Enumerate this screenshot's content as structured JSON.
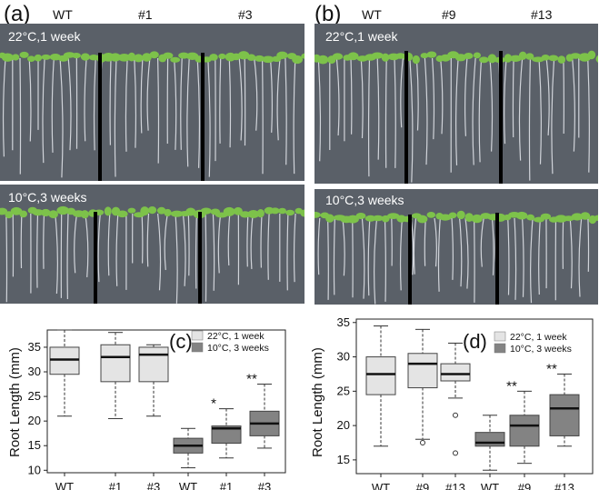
{
  "figure": {
    "panel_a": {
      "label": "(a)",
      "genotypes": [
        "WT",
        "#1",
        "#3"
      ],
      "condition_top": "22°C,1 week",
      "condition_bottom": "10°C,3 weeks"
    },
    "panel_b": {
      "label": "(b)",
      "genotypes": [
        "WT",
        "#9",
        "#13"
      ],
      "condition_top": "22°C,1 week",
      "condition_bottom": "10°C,3 weeks"
    }
  },
  "colors": {
    "light_box": "#e4e4e4",
    "dark_box": "#838383",
    "photo_bg": "#5b6169",
    "leaf": "#7dc24a",
    "root": "#e6e9ee"
  },
  "chart_data": [
    {
      "type": "boxplot",
      "panel": "(c)",
      "ylabel": "Root Length (mm)",
      "ylim": [
        9.5,
        38.5
      ],
      "yticks": [
        10,
        15,
        20,
        25,
        30,
        35
      ],
      "categories": [
        "WT",
        "#1",
        "#3",
        "WT",
        "#1",
        "#3"
      ],
      "legend": [
        "22°C, 1 week",
        "10°C, 3 weeks"
      ],
      "boxes": [
        {
          "label": "WT",
          "group": 0,
          "min": 21,
          "q1": 29.5,
          "median": 32.5,
          "q3": 35,
          "max": 38.5,
          "sig": ""
        },
        {
          "label": "#1",
          "group": 0,
          "min": 20.5,
          "q1": 28,
          "median": 33,
          "q3": 35.5,
          "max": 38,
          "sig": ""
        },
        {
          "label": "#3",
          "group": 0,
          "min": 21,
          "q1": 28,
          "median": 33.5,
          "q3": 35,
          "max": 35.5,
          "sig": ""
        },
        {
          "label": "WT",
          "group": 1,
          "min": 10.5,
          "q1": 13.5,
          "median": 15,
          "q3": 16.5,
          "max": 18.5,
          "sig": ""
        },
        {
          "label": "#1",
          "group": 1,
          "min": 12.5,
          "q1": 15.5,
          "median": 18.5,
          "q3": 19,
          "max": 22.5,
          "sig": "*"
        },
        {
          "label": "#3",
          "group": 1,
          "min": 14.5,
          "q1": 17,
          "median": 19.5,
          "q3": 22,
          "max": 27.5,
          "sig": "**"
        }
      ]
    },
    {
      "type": "boxplot",
      "panel": "(d)",
      "ylabel": "Root Length (mm)",
      "ylim": [
        13,
        35.5
      ],
      "yticks": [
        15,
        20,
        25,
        30,
        35
      ],
      "categories": [
        "WT",
        "#9",
        "#13",
        "WT",
        "#9",
        "#13"
      ],
      "legend": [
        "22°C, 1 week",
        "10°C, 3 weeks"
      ],
      "boxes": [
        {
          "label": "WT",
          "group": 0,
          "min": 17,
          "q1": 24.5,
          "median": 27.5,
          "q3": 30,
          "max": 34.5,
          "sig": "",
          "outliers": []
        },
        {
          "label": "#9",
          "group": 0,
          "min": 18,
          "q1": 25.5,
          "median": 29,
          "q3": 30.5,
          "max": 34,
          "sig": "",
          "outliers": [
            17.5
          ]
        },
        {
          "label": "#13",
          "group": 0,
          "min": 24,
          "q1": 26.5,
          "median": 27.5,
          "q3": 29,
          "max": 32,
          "sig": "",
          "outliers": [
            21.5,
            16
          ]
        },
        {
          "label": "WT",
          "group": 1,
          "min": 13.5,
          "q1": 17,
          "median": 17.5,
          "q3": 19,
          "max": 21.5,
          "sig": "",
          "outliers": []
        },
        {
          "label": "#9",
          "group": 1,
          "min": 14.5,
          "q1": 17,
          "median": 20,
          "q3": 21.5,
          "max": 25,
          "sig": "**",
          "outliers": []
        },
        {
          "label": "#13",
          "group": 1,
          "min": 17,
          "q1": 18.5,
          "median": 22.5,
          "q3": 24.5,
          "max": 27.5,
          "sig": "**",
          "outliers": []
        }
      ]
    }
  ]
}
